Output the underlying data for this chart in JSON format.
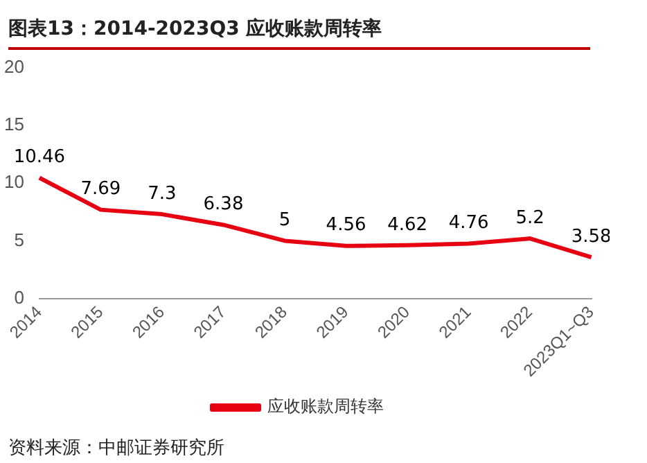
{
  "chart_data": {
    "type": "line",
    "title": "图表13：2014-2023Q3 应收账款周转率",
    "categories": [
      "2014",
      "2015",
      "2016",
      "2017",
      "2018",
      "2019",
      "2020",
      "2021",
      "2022",
      "2023Q1~Q3"
    ],
    "series": [
      {
        "name": "应收账款周转率",
        "color": "#e60012",
        "values": [
          10.46,
          7.69,
          7.3,
          6.38,
          5,
          4.56,
          4.62,
          4.76,
          5.2,
          3.58
        ]
      }
    ],
    "ylim": [
      0,
      20
    ],
    "yticks": [
      0,
      5,
      10,
      15,
      20
    ],
    "grid": false,
    "legend": "bottom",
    "marker": "none",
    "line_style": "solid",
    "data_labels": true,
    "annotations": [
      "资料来源：中邮证券研究所"
    ]
  }
}
